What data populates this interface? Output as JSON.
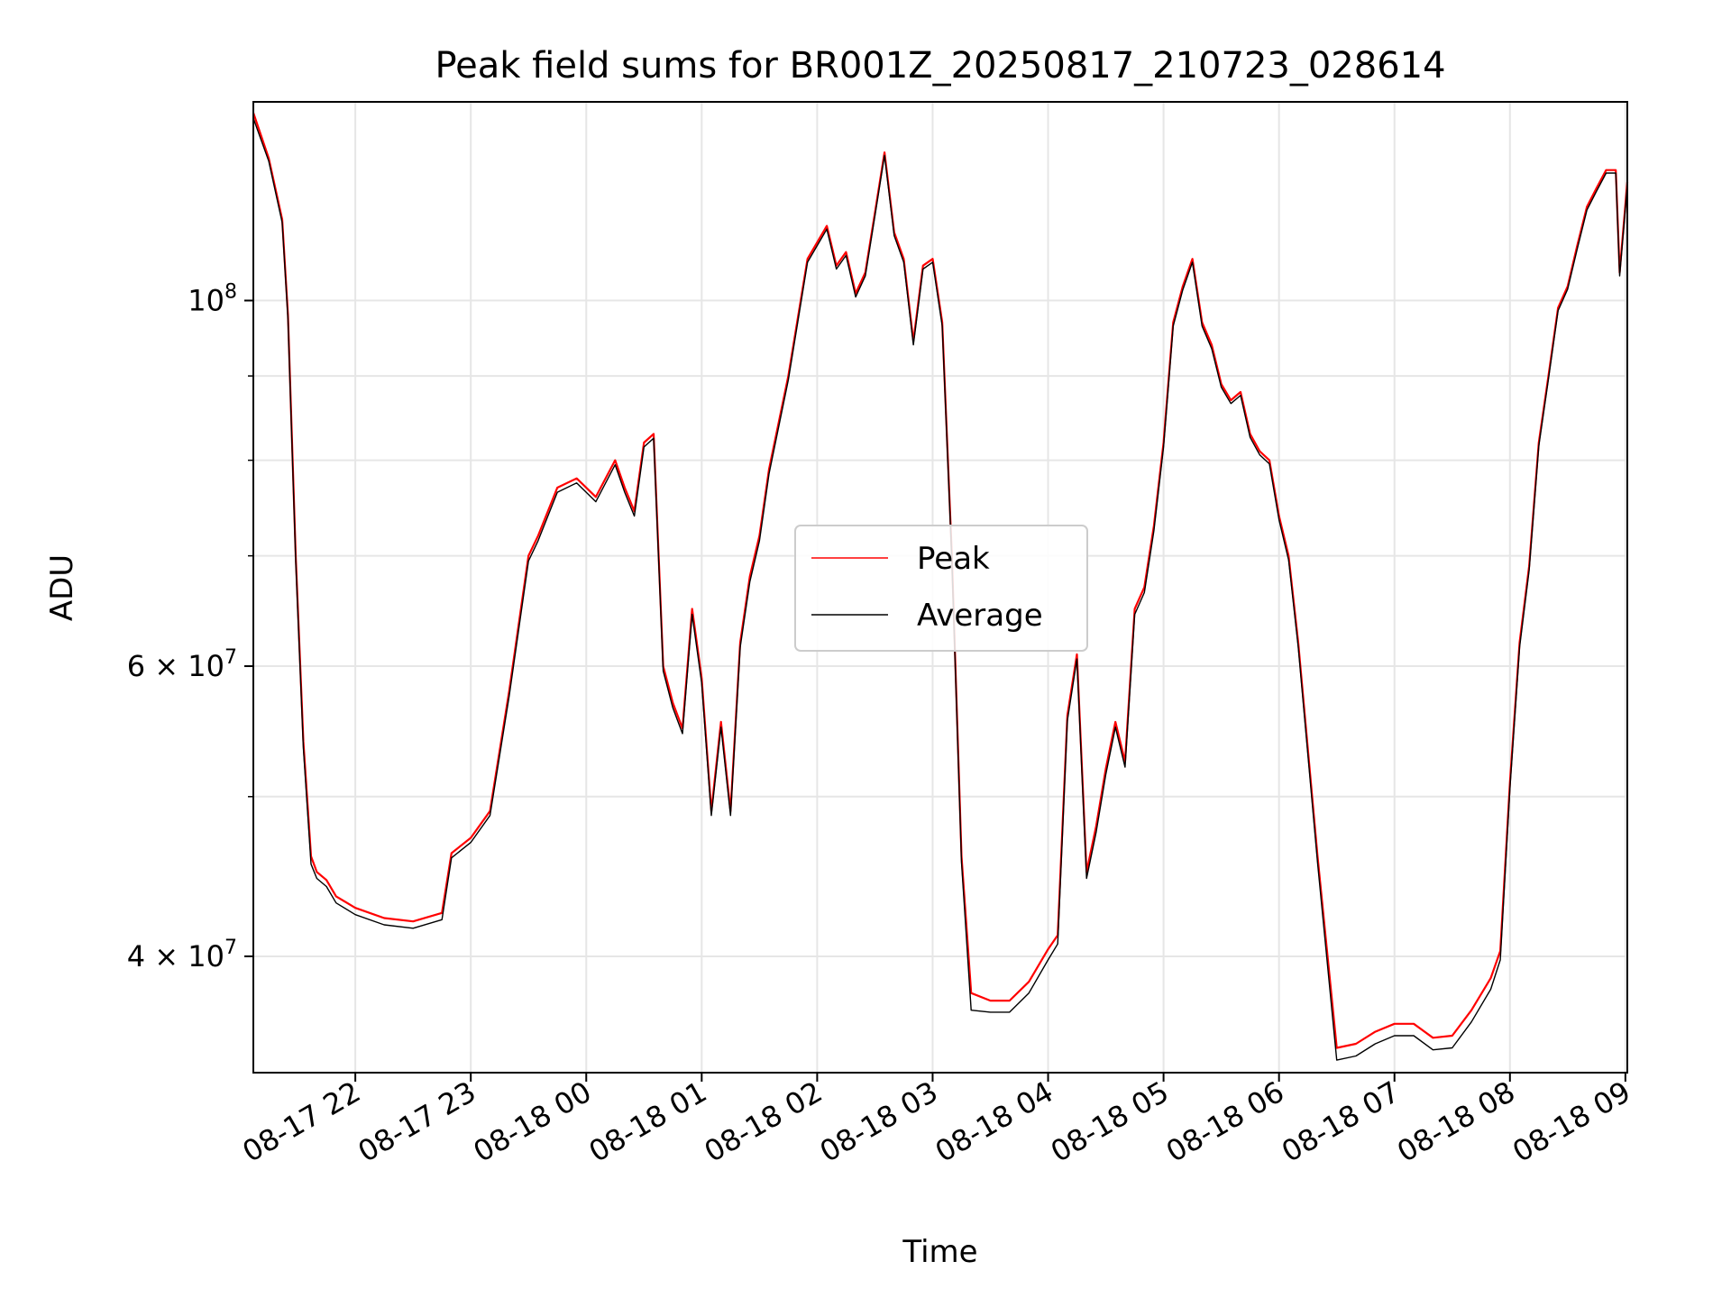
{
  "chart_data": {
    "type": "line",
    "title": "Peak field sums for BR001Z_20250817_210723_028614",
    "xlabel": "Time",
    "ylabel": "ADU",
    "y_scale": "log",
    "ylim": [
      34000000,
      132000000
    ],
    "xlim": [
      "08-17 21:07",
      "08-18 09:01"
    ],
    "grid": true,
    "legend_position": "center",
    "x_ticks": [
      "08-17 22",
      "08-17 23",
      "08-18 00",
      "08-18 01",
      "08-18 02",
      "08-18 03",
      "08-18 04",
      "08-18 05",
      "08-18 06",
      "08-18 07",
      "08-18 08",
      "08-18 09"
    ],
    "y_ticks": [
      {
        "value": 40000000,
        "mantissa": "4",
        "exponent": "7",
        "label": "4×10^7"
      },
      {
        "value": 60000000,
        "mantissa": "6",
        "exponent": "7",
        "label": "6×10^7"
      },
      {
        "value": 100000000,
        "mantissa": "",
        "exponent": "8",
        "label": "10^8"
      }
    ],
    "x": [
      "08-17 21:07",
      "08-17 21:15",
      "08-17 21:22",
      "08-17 21:25",
      "08-17 21:29",
      "08-17 21:33",
      "08-17 21:37",
      "08-17 21:40",
      "08-17 21:45",
      "08-17 21:50",
      "08-17 22:00",
      "08-17 22:15",
      "08-17 22:30",
      "08-17 22:45",
      "08-17 22:50",
      "08-17 23:00",
      "08-17 23:10",
      "08-17 23:20",
      "08-17 23:30",
      "08-17 23:35",
      "08-17 23:45",
      "08-17 23:55",
      "08-18 00:05",
      "08-18 00:15",
      "08-18 00:20",
      "08-18 00:25",
      "08-18 00:30",
      "08-18 00:35",
      "08-18 00:40",
      "08-18 00:45",
      "08-18 00:50",
      "08-18 00:55",
      "08-18 01:00",
      "08-18 01:05",
      "08-18 01:10",
      "08-18 01:15",
      "08-18 01:20",
      "08-18 01:25",
      "08-18 01:30",
      "08-18 01:35",
      "08-18 01:45",
      "08-18 01:55",
      "08-18 02:05",
      "08-18 02:10",
      "08-18 02:15",
      "08-18 02:20",
      "08-18 02:25",
      "08-18 02:30",
      "08-18 02:35",
      "08-18 02:40",
      "08-18 02:45",
      "08-18 02:50",
      "08-18 02:55",
      "08-18 03:00",
      "08-18 03:05",
      "08-18 03:10",
      "08-18 03:15",
      "08-18 03:20",
      "08-18 03:30",
      "08-18 03:40",
      "08-18 03:50",
      "08-18 04:00",
      "08-18 04:05",
      "08-18 04:10",
      "08-18 04:15",
      "08-18 04:20",
      "08-18 04:25",
      "08-18 04:30",
      "08-18 04:35",
      "08-18 04:40",
      "08-18 04:45",
      "08-18 04:50",
      "08-18 04:55",
      "08-18 05:00",
      "08-18 05:05",
      "08-18 05:10",
      "08-18 05:15",
      "08-18 05:20",
      "08-18 05:25",
      "08-18 05:30",
      "08-18 05:35",
      "08-18 05:40",
      "08-18 05:45",
      "08-18 05:50",
      "08-18 05:55",
      "08-18 06:00",
      "08-18 06:05",
      "08-18 06:10",
      "08-18 06:20",
      "08-18 06:30",
      "08-18 06:40",
      "08-18 06:50",
      "08-18 07:00",
      "08-18 07:10",
      "08-18 07:20",
      "08-18 07:30",
      "08-18 07:40",
      "08-18 07:50",
      "08-18 07:55",
      "08-18 08:00",
      "08-18 08:05",
      "08-18 08:10",
      "08-18 08:15",
      "08-18 08:20",
      "08-18 08:25",
      "08-18 08:30",
      "08-18 08:35",
      "08-18 08:40",
      "08-18 08:45",
      "08-18 08:50",
      "08-18 08:55",
      "08-18 08:57",
      "08-18 09:01"
    ],
    "series": [
      {
        "name": "Peak",
        "color": "#ff0000",
        "values": [
          130000000,
          122000000,
          112000000,
          98000000,
          70000000,
          54000000,
          46000000,
          45000000,
          44500000,
          43500000,
          42800000,
          42200000,
          42000000,
          42500000,
          46200000,
          47200000,
          49000000,
          58000000,
          70000000,
          72000000,
          77000000,
          78000000,
          76000000,
          80000000,
          77000000,
          74500000,
          82000000,
          83000000,
          60000000,
          57000000,
          55000000,
          65000000,
          59000000,
          49000000,
          55500000,
          49000000,
          62000000,
          68000000,
          72000000,
          79000000,
          90000000,
          106000000,
          111000000,
          105000000,
          107000000,
          101000000,
          104000000,
          113000000,
          123000000,
          110000000,
          106000000,
          94500000,
          105000000,
          106000000,
          97000000,
          70000000,
          46000000,
          38000000,
          37600000,
          37600000,
          38600000,
          40400000,
          41200000,
          56000000,
          61000000,
          45000000,
          48000000,
          52000000,
          55500000,
          52500000,
          65000000,
          67000000,
          73000000,
          82000000,
          97000000,
          102000000,
          106000000,
          97000000,
          94000000,
          89000000,
          87000000,
          88000000,
          83000000,
          81000000,
          80000000,
          74000000,
          70000000,
          62000000,
          46000000,
          35200000,
          35400000,
          36000000,
          36400000,
          36400000,
          35700000,
          35800000,
          37100000,
          38800000,
          40300000,
          51000000,
          62000000,
          69000000,
          82000000,
          90000000,
          99000000,
          102000000,
          108000000,
          114000000,
          117000000,
          120000000,
          120000000,
          104000000,
          118000000
        ]
      },
      {
        "name": "Average",
        "color": "#000000",
        "values": [
          129000000,
          121500000,
          111500000,
          97500000,
          69500000,
          53500000,
          45500000,
          44600000,
          44100000,
          43100000,
          42400000,
          41800000,
          41600000,
          42100000,
          45900000,
          46900000,
          48700000,
          57600000,
          69500000,
          71500000,
          76500000,
          77500000,
          75500000,
          79500000,
          76500000,
          74000000,
          81500000,
          82500000,
          59600000,
          56600000,
          54600000,
          64500000,
          58600000,
          48700000,
          55100000,
          48700000,
          61600000,
          67500000,
          71500000,
          78500000,
          89500000,
          105500000,
          110500000,
          104500000,
          106500000,
          100500000,
          103500000,
          112500000,
          122500000,
          109500000,
          105500000,
          94000000,
          104500000,
          105500000,
          96500000,
          69600000,
          45600000,
          37100000,
          37000000,
          37000000,
          38000000,
          39800000,
          40700000,
          55600000,
          60600000,
          44600000,
          47600000,
          51600000,
          55100000,
          52100000,
          64500000,
          66500000,
          72500000,
          81500000,
          96500000,
          101500000,
          105500000,
          96500000,
          93500000,
          88600000,
          86600000,
          87600000,
          82600000,
          80600000,
          79600000,
          73600000,
          69600000,
          61600000,
          45600000,
          34600000,
          34800000,
          35400000,
          35800000,
          35800000,
          35100000,
          35200000,
          36500000,
          38200000,
          39800000,
          50600000,
          61600000,
          68600000,
          81600000,
          89600000,
          98600000,
          101600000,
          107500000,
          113500000,
          116500000,
          119500000,
          119500000,
          103500000,
          117500000
        ]
      }
    ]
  }
}
